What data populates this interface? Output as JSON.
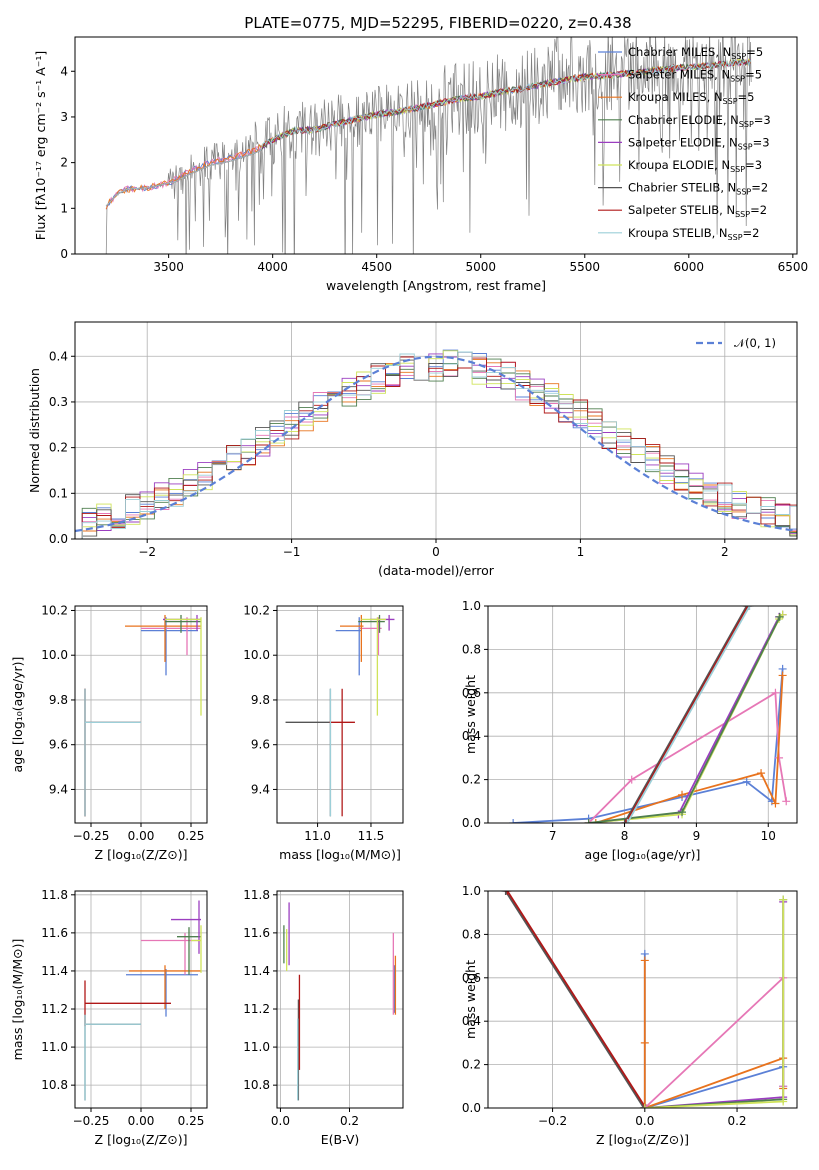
{
  "title": "PLATE=0775, MJD=52295, FIBERID=0220, z=0.438",
  "legend_colors": [
    "#5b80d6",
    "#e677b6",
    "#e8731e",
    "#4f7f4f",
    "#9b3ec0",
    "#cfe35a",
    "#555555",
    "#b01818",
    "#9ccfd8"
  ],
  "chart_data": [
    {
      "id": "spectrum",
      "type": "line",
      "xlabel": "wavelength [Angstrom, rest frame]",
      "ylabel": "Flux [fλ10⁻¹⁷ erg cm⁻² s⁻¹ A⁻¹]",
      "xlim": [
        3050,
        6520
      ],
      "ylim": [
        0,
        4.75
      ],
      "xticks": [
        3500,
        4000,
        4500,
        5000,
        5500,
        6000,
        6500
      ],
      "yticks": [
        0,
        1,
        2,
        3,
        4
      ],
      "grid": false,
      "legend_position": "right",
      "series": [
        {
          "name": "Chabrier MILES, N_SSP=5",
          "color": "#5b80d6",
          "model": "miles"
        },
        {
          "name": "Salpeter MILES, N_SSP=5",
          "color": "#e677b6",
          "model": "miles"
        },
        {
          "name": "Kroupa MILES, N_SSP=5",
          "color": "#e8731e",
          "model": "miles"
        },
        {
          "name": "Chabrier ELODIE, N_SSP=3",
          "color": "#4f7f4f",
          "model": "elodie"
        },
        {
          "name": "Salpeter ELODIE, N_SSP=3",
          "color": "#9b3ec0",
          "model": "elodie"
        },
        {
          "name": "Kroupa ELODIE, N_SSP=3",
          "color": "#cfe35a",
          "model": "elodie"
        },
        {
          "name": "Chabrier STELIB, N_SSP=2",
          "color": "#555555",
          "model": "stelib"
        },
        {
          "name": "Salpeter STELIB, N_SSP=2",
          "color": "#b01818",
          "model": "stelib"
        },
        {
          "name": "Kroupa STELIB, N_SSP=2",
          "color": "#9ccfd8",
          "model": "stelib"
        }
      ],
      "continuum": {
        "x": [
          3200,
          3250,
          3300,
          3400,
          3500,
          3600,
          3700,
          3800,
          3900,
          3950,
          4000,
          4100,
          4200,
          4300,
          4400,
          4500,
          4600,
          4700,
          4800,
          4900,
          5000,
          5100,
          5200,
          5300,
          5400,
          5500,
          5600,
          5700,
          5800,
          5900,
          6000,
          6100,
          6200,
          6300
        ],
        "y": [
          1.05,
          1.3,
          1.42,
          1.45,
          1.55,
          1.8,
          2.0,
          2.1,
          2.25,
          2.35,
          2.5,
          2.7,
          2.72,
          2.85,
          2.95,
          3.05,
          3.12,
          3.2,
          3.3,
          3.4,
          3.45,
          3.55,
          3.62,
          3.72,
          3.8,
          3.88,
          3.9,
          3.95,
          4.0,
          4.05,
          4.1,
          4.12,
          4.18,
          4.2
        ]
      }
    },
    {
      "id": "residuals",
      "type": "line",
      "xlabel": "(data-model)/error",
      "ylabel": "Normed distribution",
      "xlim": [
        -2.5,
        2.5
      ],
      "ylim": [
        0,
        0.475
      ],
      "xticks": [
        -2,
        -1,
        0,
        1,
        2
      ],
      "yticks": [
        0.0,
        0.1,
        0.2,
        0.3,
        0.4
      ],
      "grid": true,
      "legend_position": "upper right",
      "gaussian_label": "𝒩(0, 1)",
      "gaussian_color": "#5b80d6",
      "bin_width": 0.1
    },
    {
      "id": "age-vs-Z",
      "type": "scatter",
      "xlabel": "Z [log₁₀(Z/Z⊙)]",
      "ylabel": "age  [log₁₀(age/yr)]",
      "xlim": [
        -0.33,
        0.33
      ],
      "ylim": [
        9.25,
        10.22
      ],
      "xticks": [
        -0.25,
        0.0,
        0.25
      ],
      "yticks": [
        9.4,
        9.6,
        9.8,
        10.0,
        10.2
      ],
      "grid": true,
      "points": [
        {
          "x": 0.125,
          "xerr": [
            0.125,
            0.16
          ],
          "y": 10.11,
          "yerr": [
            0.2,
            0.06
          ],
          "color": "#5b80d6"
        },
        {
          "x": 0.23,
          "xerr": [
            0.23,
            0.07
          ],
          "y": 10.12,
          "yerr": [
            0.12,
            0.05
          ],
          "color": "#e677b6"
        },
        {
          "x": 0.12,
          "xerr": [
            0.2,
            0.18
          ],
          "y": 10.13,
          "yerr": [
            0.16,
            0.05
          ],
          "color": "#e8731e"
        },
        {
          "x": 0.2,
          "xerr": [
            0.08,
            0.1
          ],
          "y": 10.15,
          "yerr": [
            0.05,
            0.03
          ],
          "color": "#4f7f4f"
        },
        {
          "x": 0.28,
          "xerr": [
            0.17,
            0.02
          ],
          "y": 10.16,
          "yerr": [
            0.05,
            0.02
          ],
          "color": "#9b3ec0"
        },
        {
          "x": 0.3,
          "xerr": [
            0.18,
            0.0
          ],
          "y": 10.16,
          "yerr": [
            0.43,
            0.01
          ],
          "color": "#cfe35a"
        },
        {
          "x": -0.28,
          "xerr": [
            0.0,
            0.28
          ],
          "y": 9.7,
          "yerr": [
            0.42,
            0.15
          ],
          "color": "#555555"
        },
        {
          "x": -0.28,
          "xerr": [
            0.0,
            0.28
          ],
          "y": 9.7,
          "yerr": [
            0.42,
            0.15
          ],
          "color": "#b01818"
        },
        {
          "x": -0.28,
          "xerr": [
            0.0,
            0.28
          ],
          "y": 9.7,
          "yerr": [
            0.42,
            0.15
          ],
          "color": "#9ccfd8"
        }
      ]
    },
    {
      "id": "age-vs-mass",
      "type": "scatter",
      "xlabel": "mass [log₁₀(M/M⊙)]",
      "ylabel": "",
      "xlim": [
        10.62,
        11.8
      ],
      "ylim": [
        9.25,
        10.22
      ],
      "xticks": [
        11.0,
        11.5
      ],
      "yticks": [
        9.4,
        9.6,
        9.8,
        10.0,
        10.2
      ],
      "grid": true,
      "points": [
        {
          "x": 11.39,
          "xerr": [
            0.22,
            0.02
          ],
          "y": 10.11,
          "yerr": [
            0.2,
            0.06
          ],
          "color": "#5b80d6"
        },
        {
          "x": 11.57,
          "xerr": [
            0.18,
            0.03
          ],
          "y": 10.12,
          "yerr": [
            0.12,
            0.05
          ],
          "color": "#e677b6"
        },
        {
          "x": 11.41,
          "xerr": [
            0.2,
            0.02
          ],
          "y": 10.13,
          "yerr": [
            0.16,
            0.05
          ],
          "color": "#e8731e"
        },
        {
          "x": 11.58,
          "xerr": [
            0.2,
            0.05
          ],
          "y": 10.15,
          "yerr": [
            0.05,
            0.03
          ],
          "color": "#4f7f4f"
        },
        {
          "x": 11.67,
          "xerr": [
            0.18,
            0.05
          ],
          "y": 10.16,
          "yerr": [
            0.05,
            0.02
          ],
          "color": "#9b3ec0"
        },
        {
          "x": 11.56,
          "xerr": [
            0.15,
            0.08
          ],
          "y": 10.16,
          "yerr": [
            0.43,
            0.01
          ],
          "color": "#cfe35a"
        },
        {
          "x": 11.12,
          "xerr": [
            0.42,
            0.0
          ],
          "y": 9.7,
          "yerr": [
            0.42,
            0.15
          ],
          "color": "#555555"
        },
        {
          "x": 11.23,
          "xerr": [
            0.12,
            0.12
          ],
          "y": 9.7,
          "yerr": [
            0.42,
            0.15
          ],
          "color": "#b01818"
        },
        {
          "x": 11.12,
          "xerr": [
            0.0,
            0.0
          ],
          "y": 9.7,
          "yerr": [
            0.42,
            0.15
          ],
          "color": "#9ccfd8"
        }
      ]
    },
    {
      "id": "weight-vs-age",
      "type": "line",
      "xlabel": "age  [log₁₀(age/yr)]",
      "ylabel": "mass weight",
      "xlim": [
        6.1,
        10.4
      ],
      "ylim": [
        0,
        1.0
      ],
      "xticks": [
        7,
        8,
        9,
        10
      ],
      "yticks": [
        0.0,
        0.2,
        0.4,
        0.6,
        0.8,
        1.0
      ],
      "grid": true,
      "series": [
        {
          "color": "#5b80d6",
          "x": [
            6.45,
            7.5,
            8.8,
            9.7,
            10.05,
            10.2
          ],
          "y": [
            0.0,
            0.02,
            0.12,
            0.19,
            0.1,
            0.71
          ]
        },
        {
          "color": "#e677b6",
          "x": [
            7.5,
            8.1,
            10.1,
            10.15,
            10.25
          ],
          "y": [
            0.0,
            0.2,
            0.6,
            0.3,
            0.1
          ]
        },
        {
          "color": "#e8731e",
          "x": [
            7.6,
            8.8,
            9.9,
            10.1,
            10.2
          ],
          "y": [
            0.0,
            0.13,
            0.23,
            0.09,
            0.68
          ]
        },
        {
          "color": "#9b3ec0",
          "x": [
            7.5,
            8.75,
            10.15,
            10.2
          ],
          "y": [
            0.0,
            0.04,
            0.95,
            0.96
          ]
        },
        {
          "color": "#cfe35a",
          "x": [
            7.5,
            8.8,
            10.15,
            10.2
          ],
          "y": [
            0.0,
            0.04,
            0.94,
            0.96
          ]
        },
        {
          "color": "#4f7f4f",
          "x": [
            7.5,
            8.8,
            10.16
          ],
          "y": [
            0.0,
            0.05,
            0.95
          ]
        },
        {
          "color": "#555555",
          "x": [
            8.0,
            9.7
          ],
          "y": [
            0.0,
            1.0
          ]
        },
        {
          "color": "#b01818",
          "x": [
            8.02,
            9.72
          ],
          "y": [
            0.0,
            1.0
          ]
        },
        {
          "color": "#9ccfd8",
          "x": [
            8.04,
            9.74
          ],
          "y": [
            0.0,
            1.0
          ]
        }
      ]
    },
    {
      "id": "mass-vs-Z",
      "type": "scatter",
      "xlabel": "Z [log₁₀(Z/Z⊙)]",
      "ylabel": "mass [log₁₀(M/M⊙)]",
      "xlim": [
        -0.33,
        0.33
      ],
      "ylim": [
        10.68,
        11.82
      ],
      "xticks": [
        -0.25,
        0.0,
        0.25
      ],
      "yticks": [
        10.8,
        11.0,
        11.2,
        11.4,
        11.6,
        11.8
      ],
      "grid": true,
      "points": [
        {
          "x": 0.125,
          "xerr": [
            0.2,
            0.16
          ],
          "y": 11.38,
          "yerr": [
            0.22,
            0.03
          ],
          "color": "#5b80d6"
        },
        {
          "x": 0.22,
          "xerr": [
            0.22,
            0.08
          ],
          "y": 11.56,
          "yerr": [
            0.18,
            0.04
          ],
          "color": "#e677b6"
        },
        {
          "x": 0.12,
          "xerr": [
            0.18,
            0.18
          ],
          "y": 11.4,
          "yerr": [
            0.2,
            0.03
          ],
          "color": "#e8731e"
        },
        {
          "x": 0.24,
          "xerr": [
            0.06,
            0.06
          ],
          "y": 11.58,
          "yerr": [
            0.2,
            0.05
          ],
          "color": "#4f7f4f"
        },
        {
          "x": 0.29,
          "xerr": [
            0.14,
            0.01
          ],
          "y": 11.67,
          "yerr": [
            0.18,
            0.1
          ],
          "color": "#9b3ec0"
        },
        {
          "x": 0.3,
          "xerr": [
            0.05,
            0.0
          ],
          "y": 11.56,
          "yerr": [
            0.17,
            0.08
          ],
          "color": "#cfe35a"
        },
        {
          "x": -0.28,
          "xerr": [
            0.0,
            0.28
          ],
          "y": 11.12,
          "yerr": [
            0.4,
            0.05
          ],
          "color": "#555555"
        },
        {
          "x": -0.28,
          "xerr": [
            0.0,
            0.43
          ],
          "y": 11.23,
          "yerr": [
            0.12,
            0.12
          ],
          "color": "#b01818"
        },
        {
          "x": -0.28,
          "xerr": [
            0.0,
            0.28
          ],
          "y": 11.12,
          "yerr": [
            0.4,
            0.05
          ],
          "color": "#9ccfd8"
        }
      ]
    },
    {
      "id": "mass-vs-ebv",
      "type": "scatter",
      "xlabel": "E(B-V)",
      "ylabel": "",
      "xlim": [
        -0.01,
        0.355
      ],
      "ylim": [
        10.68,
        11.82
      ],
      "xticks": [
        0.0,
        0.2
      ],
      "yticks": [
        10.8,
        11.0,
        11.2,
        11.4,
        11.6,
        11.8
      ],
      "grid": true,
      "points": [
        {
          "x": 0.33,
          "xerr": [
            0.0,
            0.0
          ],
          "y": 11.38,
          "yerr": [
            0.2,
            0.05
          ],
          "color": "#5b80d6"
        },
        {
          "x": 0.327,
          "xerr": [
            0.0,
            0.0
          ],
          "y": 11.45,
          "yerr": [
            0.28,
            0.15
          ],
          "color": "#e677b6"
        },
        {
          "x": 0.333,
          "xerr": [
            0.0,
            0.0
          ],
          "y": 11.35,
          "yerr": [
            0.18,
            0.13
          ],
          "color": "#e8731e"
        },
        {
          "x": 0.01,
          "xerr": [
            0.0,
            0.0
          ],
          "y": 11.5,
          "yerr": [
            0.06,
            0.14
          ],
          "color": "#4f7f4f"
        },
        {
          "x": 0.025,
          "xerr": [
            0.0,
            0.0
          ],
          "y": 11.55,
          "yerr": [
            0.12,
            0.21
          ],
          "color": "#9b3ec0"
        },
        {
          "x": 0.018,
          "xerr": [
            0.0,
            0.0
          ],
          "y": 11.5,
          "yerr": [
            0.1,
            0.12
          ],
          "color": "#cfe35a"
        },
        {
          "x": 0.052,
          "xerr": [
            0.0,
            0.0
          ],
          "y": 11.0,
          "yerr": [
            0.28,
            0.25
          ],
          "color": "#555555"
        },
        {
          "x": 0.055,
          "xerr": [
            0.0,
            0.0
          ],
          "y": 11.1,
          "yerr": [
            0.22,
            0.28
          ],
          "color": "#b01818"
        },
        {
          "x": 0.05,
          "xerr": [
            0.0,
            0.0
          ],
          "y": 10.9,
          "yerr": [
            0.18,
            0.25
          ],
          "color": "#9ccfd8"
        }
      ]
    },
    {
      "id": "weight-vs-Z",
      "type": "line",
      "xlabel": "Z [log₁₀(Z/Z⊙)]",
      "ylabel": "mass weight",
      "xlim": [
        -0.34,
        0.33
      ],
      "ylim": [
        0,
        1.0
      ],
      "xticks": [
        -0.2,
        0.0,
        0.2
      ],
      "yticks": [
        0.0,
        0.2,
        0.4,
        0.6,
        0.8,
        1.0
      ],
      "grid": true,
      "series": [
        {
          "color": "#9ccfd8",
          "x": [
            -0.3,
            0.0
          ],
          "y": [
            1.0,
            0.0
          ]
        },
        {
          "color": "#555555",
          "x": [
            -0.302,
            -0.002
          ],
          "y": [
            1.0,
            0.0
          ]
        },
        {
          "color": "#b01818",
          "x": [
            -0.298,
            0.002
          ],
          "y": [
            1.0,
            0.0
          ]
        },
        {
          "color": "#5b80d6",
          "x": [
            0.0,
            0.0,
            0.0,
            0.3,
            0.3
          ],
          "y": [
            0.71,
            0.0,
            0.0,
            0.19,
            0.1
          ]
        },
        {
          "color": "#e8731e",
          "x": [
            0.0,
            0.0,
            0.0,
            0.3,
            0.3
          ],
          "y": [
            0.68,
            0.3,
            0.0,
            0.23,
            0.09
          ]
        },
        {
          "color": "#e677b6",
          "x": [
            0.0,
            0.3,
            0.3
          ],
          "y": [
            0.0,
            0.6,
            0.1
          ]
        },
        {
          "color": "#9b3ec0",
          "x": [
            0.0,
            0.3,
            0.3
          ],
          "y": [
            0.0,
            0.05,
            0.95
          ]
        },
        {
          "color": "#4f7f4f",
          "x": [
            0.0,
            0.3,
            0.3
          ],
          "y": [
            0.0,
            0.04,
            0.96
          ]
        },
        {
          "color": "#cfe35a",
          "x": [
            0.0,
            0.3,
            0.3
          ],
          "y": [
            0.0,
            0.03,
            0.96
          ]
        }
      ]
    }
  ]
}
